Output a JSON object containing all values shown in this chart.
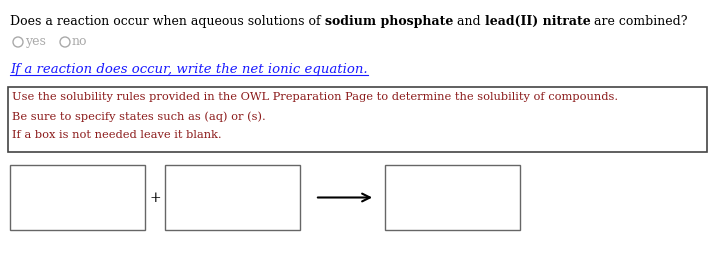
{
  "background_color": "#ffffff",
  "normal_text_color": "#000000",
  "bold_text_color": "#000000",
  "radio_color": "#aaaaaa",
  "if_reaction_color": "#1a1aff",
  "hint_text_color": "#8B1A1A",
  "box_edge_color": "#666666",
  "hint_box_edge_color": "#444444",
  "title_normal1": "Does a reaction occur when aqueous solutions of ",
  "title_bold1": "sodium phosphate",
  "title_normal2": " and ",
  "title_bold2": "lead(II) nitrate",
  "title_normal3": " are combined?",
  "radio_yes": "yes",
  "radio_no": "no",
  "if_reaction_text": "If a reaction does occur, write the net ionic equation.",
  "hint_line1": "Use the solubility rules provided in the OWL Preparation Page to determine the solubility of compounds.",
  "hint_line2": "Be sure to specify states such as (aq) or (s).",
  "hint_line3": "If a box is not needed leave it blank.",
  "font_size_title": 9,
  "font_size_radio": 9,
  "font_size_if": 9.5,
  "font_size_hint": 8.2,
  "font_size_bottom": 10
}
